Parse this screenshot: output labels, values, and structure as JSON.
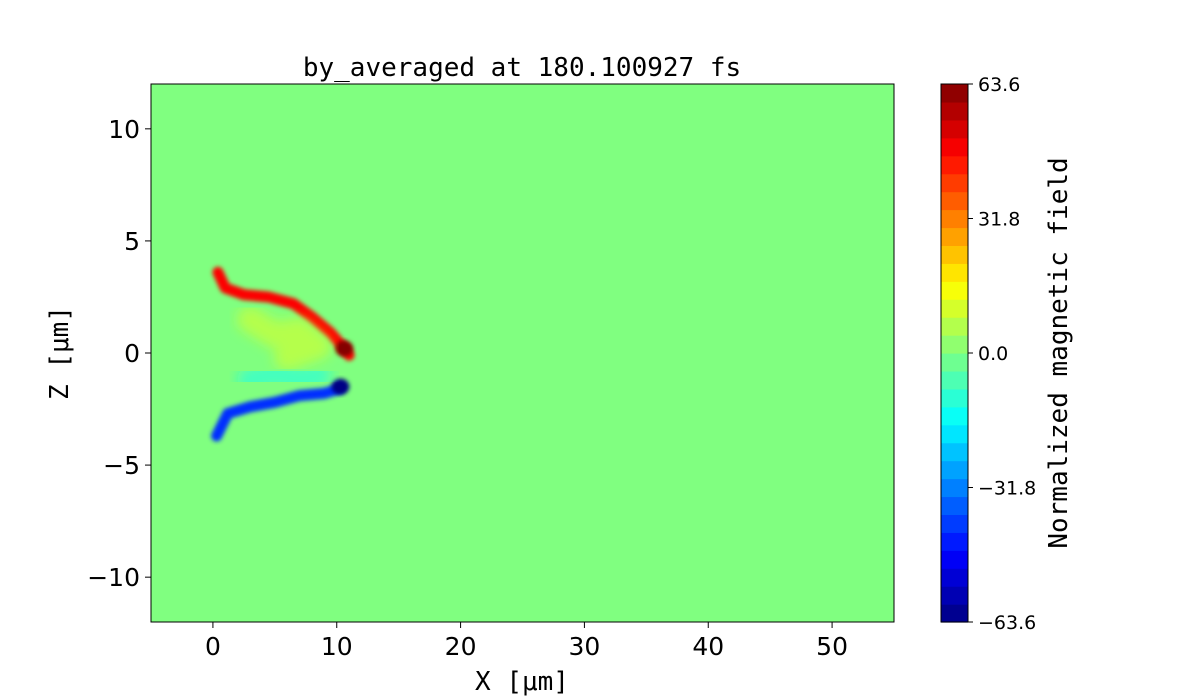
{
  "chart_data": {
    "type": "heatmap",
    "title": "by_averaged at 180.100927 fs",
    "xlabel": "X [μm]",
    "ylabel": "Z [μm]",
    "xlim": [
      -5,
      55
    ],
    "ylim": [
      -12,
      12
    ],
    "x_ticks": [
      {
        "value": 0,
        "label": "0"
      },
      {
        "value": 10,
        "label": "10"
      },
      {
        "value": 20,
        "label": "20"
      },
      {
        "value": 30,
        "label": "30"
      },
      {
        "value": 40,
        "label": "40"
      },
      {
        "value": 50,
        "label": "50"
      }
    ],
    "y_ticks": [
      {
        "value": 10,
        "label": "10"
      },
      {
        "value": 5,
        "label": "5"
      },
      {
        "value": 0,
        "label": "0"
      },
      {
        "value": -5,
        "label": "−5"
      },
      {
        "value": -10,
        "label": "−10"
      }
    ],
    "background_value": 0.0,
    "colormap": "jet",
    "colorbar": {
      "label": "Normalized magnetic field",
      "vmin": -63.6,
      "vmax": 63.6,
      "levels": 30,
      "ticks": [
        {
          "value": 63.6,
          "label": "63.6"
        },
        {
          "value": 31.8,
          "label": "31.8"
        },
        {
          "value": 0.0,
          "label": "0.0"
        },
        {
          "value": -31.8,
          "label": "−31.8"
        },
        {
          "value": -63.6,
          "label": "−63.6"
        }
      ]
    },
    "features": [
      {
        "name": "positive-upper-arc",
        "points": [
          [
            0.4,
            3.6
          ],
          [
            1.0,
            2.9
          ],
          [
            2.5,
            2.6
          ],
          [
            4.5,
            2.5
          ],
          [
            6.5,
            2.2
          ],
          [
            8.0,
            1.6
          ],
          [
            9.5,
            0.9
          ],
          [
            10.6,
            0.2
          ],
          [
            11.0,
            -0.1
          ]
        ],
        "value": 48
      },
      {
        "name": "positive-peak",
        "points": [
          [
            10.6,
            0.2
          ]
        ],
        "value": 63
      },
      {
        "name": "negative-lower-arc",
        "points": [
          [
            0.3,
            -3.7
          ],
          [
            1.2,
            -2.7
          ],
          [
            3.0,
            -2.4
          ],
          [
            5.0,
            -2.2
          ],
          [
            7.0,
            -1.9
          ],
          [
            9.0,
            -1.8
          ],
          [
            10.2,
            -1.6
          ]
        ],
        "value": -42
      },
      {
        "name": "negative-peak",
        "points": [
          [
            10.3,
            -1.5
          ]
        ],
        "value": -63
      },
      {
        "name": "weak-positive-interior",
        "points": [
          [
            3,
            1.5
          ],
          [
            5,
            0.8
          ],
          [
            7,
            1.0
          ],
          [
            8.5,
            0.3
          ],
          [
            6,
            -0.2
          ]
        ],
        "value": 12
      },
      {
        "name": "weak-negative-interior",
        "points": [
          [
            3,
            -1.2
          ],
          [
            5,
            -0.9
          ],
          [
            7,
            -1.2
          ],
          [
            8.5,
            -1.0
          ]
        ],
        "value": -14
      }
    ]
  }
}
